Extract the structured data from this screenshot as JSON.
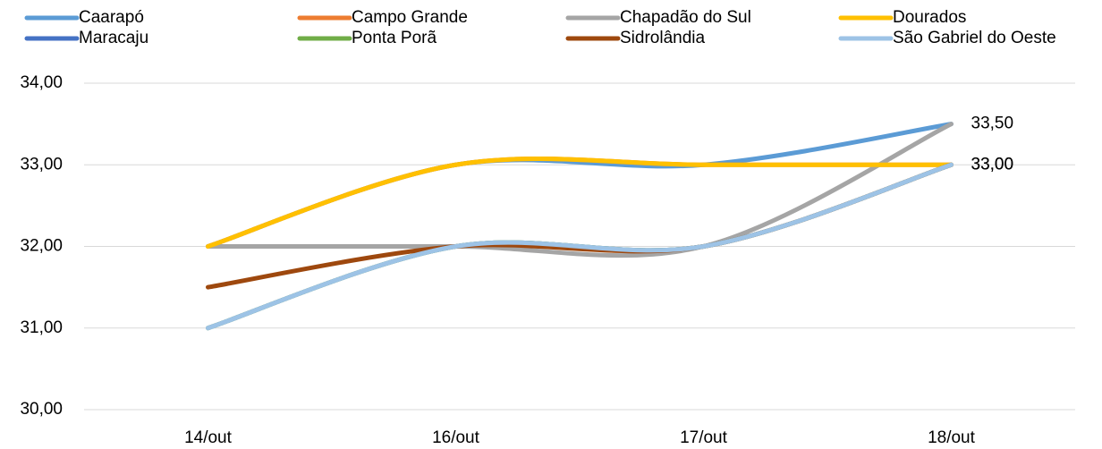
{
  "chart_data": {
    "type": "line",
    "categories": [
      "14/out",
      "16/out",
      "17/out",
      "18/out"
    ],
    "series": [
      {
        "name": "Caarapó",
        "color": "#5b9bd5",
        "values": [
          32,
          33,
          33,
          33.5
        ],
        "value_labels": [
          null,
          null,
          null,
          "33,50"
        ]
      },
      {
        "name": "Campo Grande",
        "color": "#ed7d31",
        "values": [
          32,
          33,
          33,
          33
        ]
      },
      {
        "name": "Chapadão do Sul",
        "color": "#a5a5a5",
        "values": [
          32,
          32,
          32,
          33.5
        ]
      },
      {
        "name": "Dourados",
        "color": "#ffc000",
        "values": [
          32,
          33,
          33,
          33
        ],
        "value_labels": [
          null,
          null,
          null,
          "33,00"
        ]
      },
      {
        "name": "Maracaju",
        "color": "#4472c4",
        "values": [
          31,
          32,
          32,
          33
        ]
      },
      {
        "name": "Ponta Porã",
        "color": "#70ad47",
        "values": [
          31,
          32,
          32,
          33
        ]
      },
      {
        "name": "Sidrolândia",
        "color": "#9e480e",
        "values": [
          31.5,
          32,
          32,
          33
        ]
      },
      {
        "name": "São Gabriel do Oeste",
        "color": "#9dc3e6",
        "values": [
          31,
          32,
          32,
          33
        ],
        "value_labels": [
          null,
          null,
          null,
          "33,00"
        ]
      }
    ],
    "ylim": [
      30,
      34
    ],
    "yticks": [
      {
        "value": 30,
        "label": "30,00"
      },
      {
        "value": 31,
        "label": "31,00"
      },
      {
        "value": 32,
        "label": "32,00"
      },
      {
        "value": 33,
        "label": "33,00"
      },
      {
        "value": 34,
        "label": "34,00"
      }
    ],
    "grid": true,
    "legend": "top",
    "smooth": true
  }
}
